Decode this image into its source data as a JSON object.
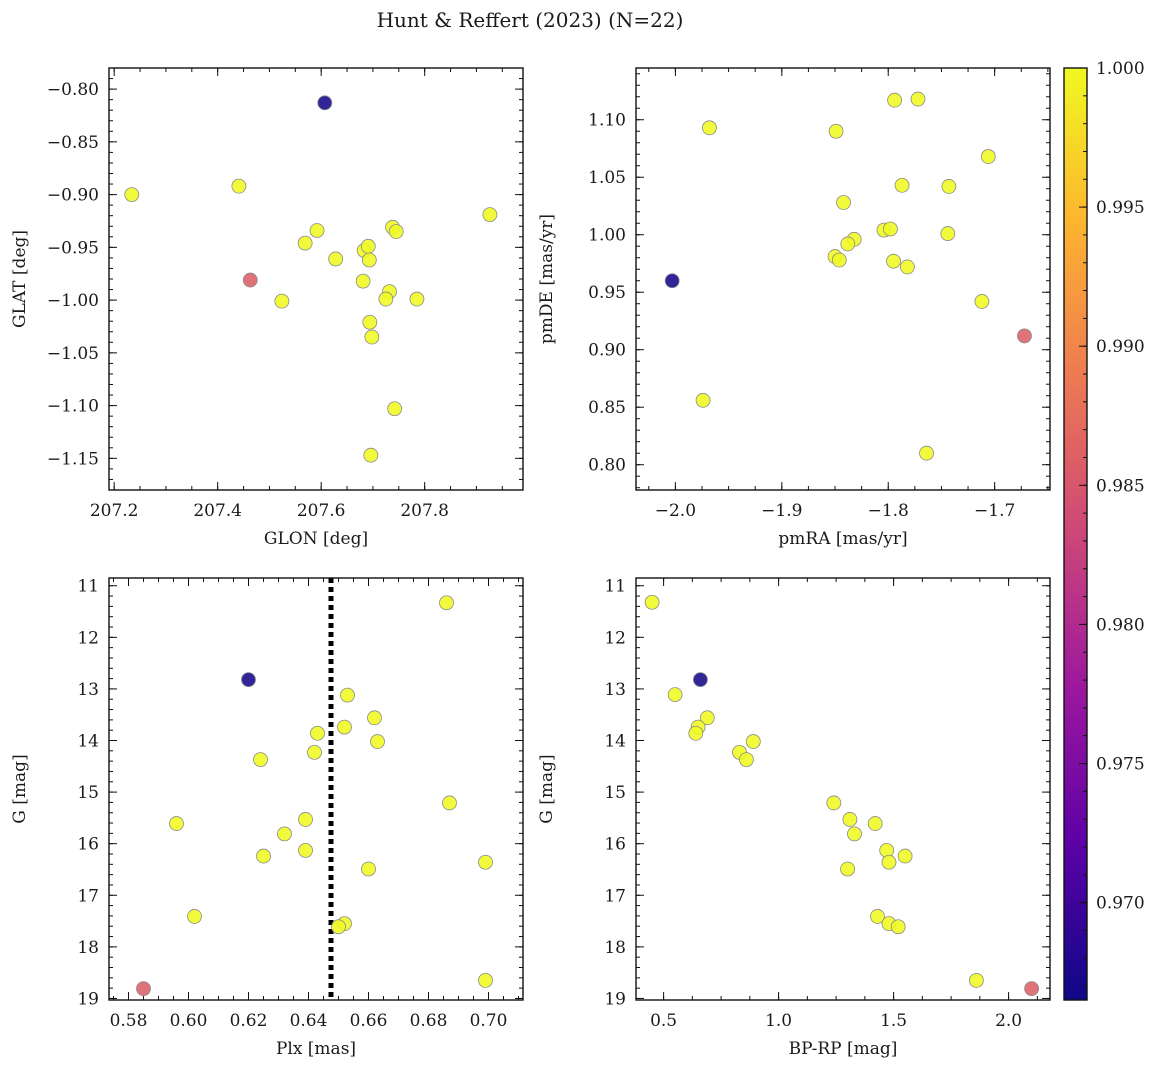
{
  "figure_title": "Hunt & Reffert (2023) (N=22)",
  "colors": {
    "low": "#33318f",
    "high": "#f2f542",
    "marker_edge": "#8a8a8a",
    "dotted_line": "#000000",
    "colormap": [
      "#0d0887",
      "#5c01a6",
      "#9c179e",
      "#cc4778",
      "#ed7953",
      "#fdb42f",
      "#f0f921"
    ]
  },
  "chart_data": [
    {
      "type": "scatter",
      "panel": "top-left",
      "title": "",
      "xlabel": "GLON [deg]",
      "ylabel": "GLAT [deg]",
      "xlim": [
        207.19,
        207.99
      ],
      "ylim": [
        -1.18,
        -0.78
      ],
      "invert_y": false,
      "xticks": [
        207.2,
        207.4,
        207.6,
        207.8
      ],
      "xtick_labels": [
        "207.2",
        "207.4",
        "207.6",
        "207.8"
      ],
      "yticks": [
        -0.8,
        -0.85,
        -0.9,
        -0.95,
        -1.0,
        -1.05,
        -1.1,
        -1.15
      ],
      "ytick_labels": [
        "−0.80",
        "−0.85",
        "−0.90",
        "−0.95",
        "−1.00",
        "−1.05",
        "−1.10",
        "−1.15"
      ],
      "points": [
        {
          "x": 207.234,
          "y": -0.9,
          "p": 1.0
        },
        {
          "x": 207.441,
          "y": -0.892,
          "p": 1.0
        },
        {
          "x": 207.926,
          "y": -0.919,
          "p": 1.0
        },
        {
          "x": 207.592,
          "y": -0.934,
          "p": 1.0
        },
        {
          "x": 207.569,
          "y": -0.946,
          "p": 1.0
        },
        {
          "x": 207.628,
          "y": -0.961,
          "p": 1.0
        },
        {
          "x": 207.738,
          "y": -0.931,
          "p": 1.0
        },
        {
          "x": 207.745,
          "y": -0.935,
          "p": 1.0
        },
        {
          "x": 207.683,
          "y": -0.953,
          "p": 1.0
        },
        {
          "x": 207.691,
          "y": -0.949,
          "p": 1.0
        },
        {
          "x": 207.693,
          "y": -0.962,
          "p": 1.0
        },
        {
          "x": 207.681,
          "y": -0.982,
          "p": 1.0
        },
        {
          "x": 207.732,
          "y": -0.992,
          "p": 1.0
        },
        {
          "x": 207.725,
          "y": -0.999,
          "p": 1.0
        },
        {
          "x": 207.785,
          "y": -0.999,
          "p": 1.0
        },
        {
          "x": 207.524,
          "y": -1.001,
          "p": 1.0
        },
        {
          "x": 207.694,
          "y": -1.021,
          "p": 1.0
        },
        {
          "x": 207.698,
          "y": -1.035,
          "p": 1.0
        },
        {
          "x": 207.742,
          "y": -1.103,
          "p": 1.0
        },
        {
          "x": 207.696,
          "y": -1.147,
          "p": 1.0
        },
        {
          "x": 207.463,
          "y": -0.981,
          "p": 0.986
        },
        {
          "x": 207.607,
          "y": -0.813,
          "p": 0.967
        }
      ]
    },
    {
      "type": "scatter",
      "panel": "top-right",
      "title": "",
      "xlabel": "pmRA [mas/yr]",
      "ylabel": "pmDE [mas/yr]",
      "xlim": [
        -2.037,
        -1.648
      ],
      "ylim": [
        0.778,
        1.145
      ],
      "invert_y": false,
      "xticks": [
        -2.0,
        -1.9,
        -1.8,
        -1.7
      ],
      "xtick_labels": [
        "−2.0",
        "−1.9",
        "−1.8",
        "−1.7"
      ],
      "yticks": [
        0.8,
        0.85,
        0.9,
        0.95,
        1.0,
        1.05,
        1.1
      ],
      "ytick_labels": [
        "0.80",
        "0.85",
        "0.90",
        "0.95",
        "1.00",
        "1.05",
        "1.10"
      ],
      "points": [
        {
          "x": -1.968,
          "y": 1.093,
          "p": 1.0
        },
        {
          "x": -1.849,
          "y": 1.09,
          "p": 1.0
        },
        {
          "x": -1.794,
          "y": 1.117,
          "p": 1.0
        },
        {
          "x": -1.772,
          "y": 1.118,
          "p": 1.0
        },
        {
          "x": -1.706,
          "y": 1.068,
          "p": 1.0
        },
        {
          "x": -1.787,
          "y": 1.043,
          "p": 1.0
        },
        {
          "x": -1.743,
          "y": 1.042,
          "p": 1.0
        },
        {
          "x": -1.842,
          "y": 1.028,
          "p": 1.0
        },
        {
          "x": -1.804,
          "y": 1.004,
          "p": 1.0
        },
        {
          "x": -1.798,
          "y": 1.005,
          "p": 1.0
        },
        {
          "x": -1.744,
          "y": 1.001,
          "p": 1.0
        },
        {
          "x": -1.832,
          "y": 0.996,
          "p": 1.0
        },
        {
          "x": -1.838,
          "y": 0.992,
          "p": 1.0
        },
        {
          "x": -1.85,
          "y": 0.981,
          "p": 1.0
        },
        {
          "x": -1.846,
          "y": 0.978,
          "p": 1.0
        },
        {
          "x": -1.795,
          "y": 0.977,
          "p": 1.0
        },
        {
          "x": -1.782,
          "y": 0.972,
          "p": 1.0
        },
        {
          "x": -1.712,
          "y": 0.942,
          "p": 1.0
        },
        {
          "x": -1.974,
          "y": 0.856,
          "p": 1.0
        },
        {
          "x": -1.764,
          "y": 0.81,
          "p": 1.0
        },
        {
          "x": -1.672,
          "y": 0.912,
          "p": 0.986
        },
        {
          "x": -2.003,
          "y": 0.96,
          "p": 0.967
        }
      ]
    },
    {
      "type": "scatter",
      "panel": "bottom-left",
      "title": "",
      "xlabel": "Plx [mas]",
      "ylabel": "G [mag]",
      "xlim": [
        0.5735,
        0.7115
      ],
      "ylim": [
        19.03,
        10.85
      ],
      "invert_y": true,
      "xticks": [
        0.58,
        0.6,
        0.62,
        0.64,
        0.66,
        0.68,
        0.7
      ],
      "xtick_labels": [
        "0.58",
        "0.60",
        "0.62",
        "0.64",
        "0.66",
        "0.68",
        "0.70"
      ],
      "yticks": [
        11,
        12,
        13,
        14,
        15,
        16,
        17,
        18,
        19
      ],
      "ytick_labels": [
        "11",
        "12",
        "13",
        "14",
        "15",
        "16",
        "17",
        "18",
        "19"
      ],
      "vline": {
        "x": 0.6475,
        "style": "dotted"
      },
      "points": [
        {
          "x": 0.686,
          "y": 11.33,
          "p": 1.0
        },
        {
          "x": 0.653,
          "y": 13.12,
          "p": 1.0
        },
        {
          "x": 0.662,
          "y": 13.56,
          "p": 1.0
        },
        {
          "x": 0.652,
          "y": 13.74,
          "p": 1.0
        },
        {
          "x": 0.643,
          "y": 13.86,
          "p": 1.0
        },
        {
          "x": 0.663,
          "y": 14.02,
          "p": 1.0
        },
        {
          "x": 0.642,
          "y": 14.23,
          "p": 1.0
        },
        {
          "x": 0.624,
          "y": 14.37,
          "p": 1.0
        },
        {
          "x": 0.687,
          "y": 15.21,
          "p": 1.0
        },
        {
          "x": 0.639,
          "y": 15.53,
          "p": 1.0
        },
        {
          "x": 0.596,
          "y": 15.61,
          "p": 1.0
        },
        {
          "x": 0.632,
          "y": 15.81,
          "p": 1.0
        },
        {
          "x": 0.639,
          "y": 16.13,
          "p": 1.0
        },
        {
          "x": 0.625,
          "y": 16.24,
          "p": 1.0
        },
        {
          "x": 0.699,
          "y": 16.36,
          "p": 1.0
        },
        {
          "x": 0.66,
          "y": 16.49,
          "p": 1.0
        },
        {
          "x": 0.602,
          "y": 17.41,
          "p": 1.0
        },
        {
          "x": 0.652,
          "y": 17.55,
          "p": 1.0
        },
        {
          "x": 0.65,
          "y": 17.61,
          "p": 1.0
        },
        {
          "x": 0.699,
          "y": 18.65,
          "p": 1.0
        },
        {
          "x": 0.585,
          "y": 18.81,
          "p": 0.986
        },
        {
          "x": 0.62,
          "y": 12.82,
          "p": 0.967
        }
      ]
    },
    {
      "type": "scatter",
      "panel": "bottom-right",
      "title": "",
      "xlabel": "BP-RP [mag]",
      "ylabel": "G [mag]",
      "xlim": [
        0.38,
        2.18
      ],
      "ylim": [
        19.03,
        10.85
      ],
      "invert_y": true,
      "xticks": [
        0.5,
        1.0,
        1.5,
        2.0
      ],
      "xtick_labels": [
        "0.5",
        "1.0",
        "1.5",
        "2.0"
      ],
      "yticks": [
        11,
        12,
        13,
        14,
        15,
        16,
        17,
        18,
        19
      ],
      "ytick_labels": [
        "11",
        "12",
        "13",
        "14",
        "15",
        "16",
        "17",
        "18",
        "19"
      ],
      "points": [
        {
          "x": 0.45,
          "y": 11.32,
          "p": 1.0
        },
        {
          "x": 0.55,
          "y": 13.11,
          "p": 1.0
        },
        {
          "x": 0.69,
          "y": 13.56,
          "p": 1.0
        },
        {
          "x": 0.65,
          "y": 13.74,
          "p": 1.0
        },
        {
          "x": 0.64,
          "y": 13.86,
          "p": 1.0
        },
        {
          "x": 0.89,
          "y": 14.02,
          "p": 1.0
        },
        {
          "x": 0.83,
          "y": 14.23,
          "p": 1.0
        },
        {
          "x": 0.86,
          "y": 14.37,
          "p": 1.0
        },
        {
          "x": 1.24,
          "y": 15.21,
          "p": 1.0
        },
        {
          "x": 1.31,
          "y": 15.53,
          "p": 1.0
        },
        {
          "x": 1.42,
          "y": 15.61,
          "p": 1.0
        },
        {
          "x": 1.33,
          "y": 15.81,
          "p": 1.0
        },
        {
          "x": 1.47,
          "y": 16.13,
          "p": 1.0
        },
        {
          "x": 1.55,
          "y": 16.24,
          "p": 1.0
        },
        {
          "x": 1.48,
          "y": 16.36,
          "p": 1.0
        },
        {
          "x": 1.3,
          "y": 16.49,
          "p": 1.0
        },
        {
          "x": 1.43,
          "y": 17.41,
          "p": 1.0
        },
        {
          "x": 1.48,
          "y": 17.55,
          "p": 1.0
        },
        {
          "x": 1.52,
          "y": 17.61,
          "p": 1.0
        },
        {
          "x": 1.86,
          "y": 18.65,
          "p": 1.0
        },
        {
          "x": 2.1,
          "y": 18.81,
          "p": 0.986
        },
        {
          "x": 0.66,
          "y": 12.82,
          "p": 0.967
        }
      ]
    },
    {
      "type": "colorbar",
      "vmin": 0.9665,
      "vmax": 1.0,
      "ticks": [
        0.97,
        0.975,
        0.98,
        0.985,
        0.99,
        0.995,
        1.0
      ],
      "tick_labels": [
        "0.970",
        "0.975",
        "0.980",
        "0.985",
        "0.990",
        "0.995",
        "1.000"
      ]
    }
  ]
}
